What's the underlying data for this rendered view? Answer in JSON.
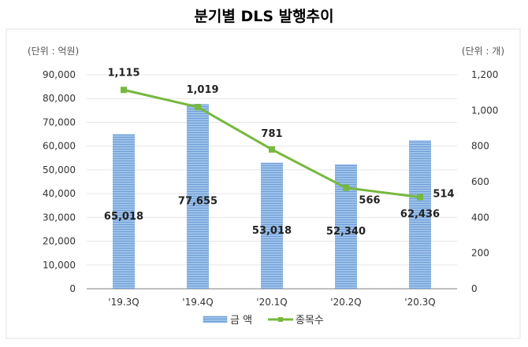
{
  "chart_data": {
    "type": "bar+line",
    "title": "분기별 DLS 발행추이",
    "left_unit": "(단위 : 억원)",
    "right_unit": "(단위 : 개)",
    "categories": [
      "'19.3Q",
      "'19.4Q",
      "'20.1Q",
      "'20.2Q",
      "'20.3Q"
    ],
    "series": [
      {
        "name": "금 액",
        "type": "bar",
        "axis": "left",
        "values": [
          65018,
          77655,
          53018,
          52340,
          62436
        ],
        "labels": [
          "65,018",
          "77,655",
          "53,018",
          "52,340",
          "62,436"
        ],
        "color": "#8db4e2"
      },
      {
        "name": "종목수",
        "type": "line",
        "axis": "right",
        "values": [
          1115,
          1019,
          781,
          566,
          514
        ],
        "labels": [
          "1,115",
          "1,019",
          "781",
          "566",
          "514"
        ],
        "color": "#77b83f"
      }
    ],
    "left_axis": {
      "range": [
        0,
        90000
      ],
      "ticks": [
        "0",
        "10,000",
        "20,000",
        "30,000",
        "40,000",
        "50,000",
        "60,000",
        "70,000",
        "80,000",
        "90,000"
      ]
    },
    "right_axis": {
      "range": [
        0,
        1200
      ],
      "ticks": [
        "0",
        "200",
        "400",
        "600",
        "800",
        "1,000",
        "1,200"
      ]
    },
    "grid": true,
    "legend": "bottom"
  }
}
